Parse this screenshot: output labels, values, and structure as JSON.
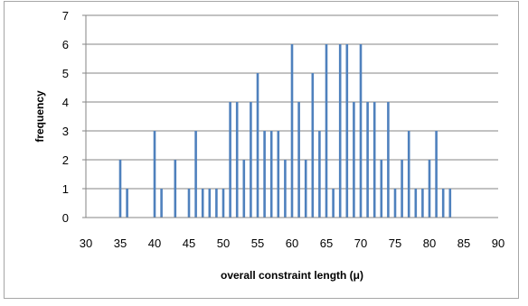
{
  "chart_data": {
    "type": "bar",
    "title": "",
    "xlabel": "overall constraint length (μ)",
    "ylabel": "frequency",
    "xlim": [
      30,
      90
    ],
    "ylim": [
      0,
      7
    ],
    "xticks": [
      30,
      35,
      40,
      45,
      50,
      55,
      60,
      65,
      70,
      75,
      80,
      85,
      90
    ],
    "yticks": [
      0,
      1,
      2,
      3,
      4,
      5,
      6,
      7
    ],
    "grid": "horizontal",
    "legend": "none",
    "bar_color": "#4f81bd",
    "points": [
      {
        "x": 35,
        "y": 2
      },
      {
        "x": 36,
        "y": 1
      },
      {
        "x": 40,
        "y": 3
      },
      {
        "x": 41,
        "y": 1
      },
      {
        "x": 43,
        "y": 2
      },
      {
        "x": 45,
        "y": 1
      },
      {
        "x": 46,
        "y": 3
      },
      {
        "x": 47,
        "y": 1
      },
      {
        "x": 48,
        "y": 1
      },
      {
        "x": 49,
        "y": 1
      },
      {
        "x": 50,
        "y": 1
      },
      {
        "x": 51,
        "y": 4
      },
      {
        "x": 52,
        "y": 4
      },
      {
        "x": 53,
        "y": 2
      },
      {
        "x": 54,
        "y": 4
      },
      {
        "x": 55,
        "y": 5
      },
      {
        "x": 56,
        "y": 3
      },
      {
        "x": 57,
        "y": 3
      },
      {
        "x": 58,
        "y": 3
      },
      {
        "x": 59,
        "y": 2
      },
      {
        "x": 60,
        "y": 6
      },
      {
        "x": 61,
        "y": 4
      },
      {
        "x": 62,
        "y": 2
      },
      {
        "x": 63,
        "y": 5
      },
      {
        "x": 64,
        "y": 3
      },
      {
        "x": 65,
        "y": 6
      },
      {
        "x": 66,
        "y": 1
      },
      {
        "x": 67,
        "y": 6
      },
      {
        "x": 68,
        "y": 6
      },
      {
        "x": 69,
        "y": 4
      },
      {
        "x": 70,
        "y": 6
      },
      {
        "x": 71,
        "y": 4
      },
      {
        "x": 72,
        "y": 4
      },
      {
        "x": 73,
        "y": 2
      },
      {
        "x": 74,
        "y": 4
      },
      {
        "x": 75,
        "y": 1
      },
      {
        "x": 76,
        "y": 2
      },
      {
        "x": 77,
        "y": 3
      },
      {
        "x": 78,
        "y": 1
      },
      {
        "x": 79,
        "y": 1
      },
      {
        "x": 80,
        "y": 2
      },
      {
        "x": 81,
        "y": 3
      },
      {
        "x": 82,
        "y": 1
      },
      {
        "x": 83,
        "y": 1
      }
    ]
  }
}
